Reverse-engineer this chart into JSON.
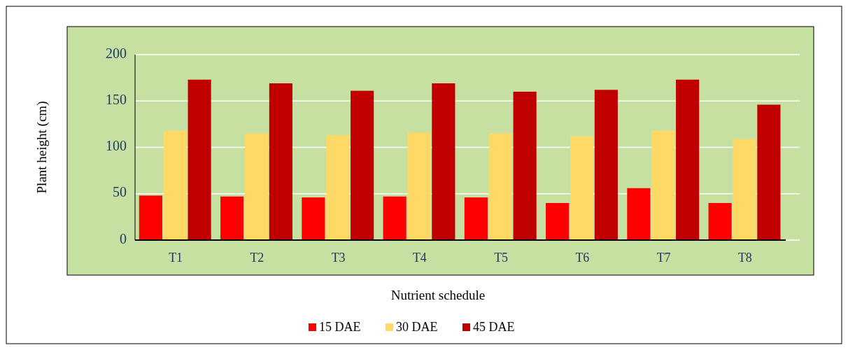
{
  "chart_data": {
    "type": "bar",
    "xlabel": "Nutrient schedule",
    "ylabel": "Plant height (cm)",
    "categories": [
      "T1",
      "T2",
      "T3",
      "T4",
      "T5",
      "T6",
      "T7",
      "T8"
    ],
    "series": [
      {
        "name": "15 DAE",
        "color": "#ff0000",
        "values": [
          48,
          47,
          46,
          47,
          46,
          40,
          56,
          40
        ]
      },
      {
        "name": "30 DAE",
        "color": "#ffd966",
        "values": [
          118,
          115,
          113,
          116,
          115,
          112,
          118,
          109
        ]
      },
      {
        "name": "45 DAE",
        "color": "#c00000",
        "values": [
          173,
          169,
          161,
          169,
          160,
          162,
          173,
          146
        ]
      }
    ],
    "ylim": [
      0,
      200
    ],
    "yticks": [
      0,
      50,
      100,
      150,
      200
    ],
    "grid": "y",
    "legend": "bottom"
  }
}
